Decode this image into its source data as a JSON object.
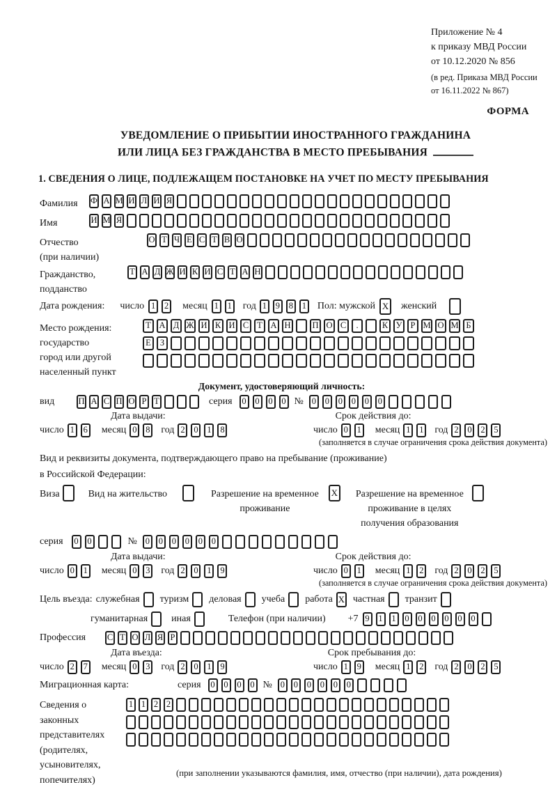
{
  "ink": "#1b1b1b",
  "header": {
    "appendix_lines": [
      "Приложение № 4",
      "к приказу МВД России",
      "от 10.12.2020 № 856"
    ],
    "edition_lines": [
      "(в ред. Приказа МВД России",
      "от 16.11.2022 № 867)"
    ],
    "form_label": "ФОРМА"
  },
  "title": {
    "line1": "УВЕДОМЛЕНИЕ О ПРИБЫТИИ ИНОСТРАННОГО ГРАЖДАНИНА",
    "line2": "ИЛИ ЛИЦА БЕЗ ГРАЖДАНСТВА В МЕСТО ПРЕБЫВАНИЯ"
  },
  "section1_heading": "1. СВЕДЕНИЯ О ЛИЦЕ, ПОДЛЕЖАЩЕМ ПОСТАНОВКЕ НА УЧЕТ ПО МЕСТУ ПРЕБЫВАНИЯ",
  "labels": {
    "surname": "Фамилия",
    "name": "Имя",
    "patronymic": "Отчество",
    "patronymic_note": "(при наличии)",
    "citizenship1": "Гражданство,",
    "citizenship2": "подданство",
    "birth_date": "Дата рождения:",
    "day": "число",
    "month": "месяц",
    "year": "год",
    "sex": "Пол:",
    "male": "мужской",
    "female": "женский",
    "birth_place1": "Место рождения:",
    "birth_place2": "государство",
    "birth_place3": "город или другой",
    "birth_place4": "населенный пункт",
    "identity_doc_heading": "Документ, удостоверяющий личность:",
    "doc_type": "вид",
    "series": "серия",
    "number": "№",
    "issue_date": "Дата выдачи:",
    "valid_until": "Срок действия до:",
    "valid_note": "(заполняется в случае ограничения срока действия документа)",
    "residence_doc_line1": "Вид и реквизиты документа, подтверждающего право на пребывание (проживание)",
    "residence_doc_line2": "в Российской Федерации:",
    "visa": "Виза",
    "residence_permit": "Вид на жительство",
    "temp_residence": [
      "Разрешение на временное",
      "проживание"
    ],
    "temp_residence_edu": [
      "Разрешение на временное",
      "проживание в целях",
      "получения образования"
    ],
    "visit_purpose": "Цель въезда:",
    "purpose_official": "служебная",
    "purpose_tourism": "туризм",
    "purpose_business": "деловая",
    "purpose_study": "учеба",
    "purpose_work": "работа",
    "purpose_private": "частная",
    "purpose_transit": "транзит",
    "purpose_humanitarian": "гуманитарная",
    "purpose_other": "иная",
    "phone": "Телефон (при наличии)",
    "phone_prefix": "+7",
    "profession": "Профессия",
    "entry_date": "Дата въезда:",
    "stay_until": "Срок пребывания до:",
    "migration_card": "Миграционная карта:",
    "representatives": [
      "Сведения о",
      "законных",
      "представителях",
      "(родителях,",
      "усыновителях,",
      "попечителях)"
    ],
    "representatives_note": "(при заполнении указываются фамилия, имя, отчество (при наличии), дата рождения)"
  },
  "boxes": {
    "surname": {
      "value": "ФАМИЛИЯ",
      "cells": 29
    },
    "name": {
      "value": "ИМЯ",
      "cells": 29
    },
    "patronymic": {
      "value": "ОТЧЕСТВО",
      "cells": 26
    },
    "citizenship": {
      "value": "ТАДЖИКИСТАН",
      "cells": 27
    },
    "birth_day": {
      "value": "12",
      "cells": 2
    },
    "birth_month": {
      "value": "11",
      "cells": 2
    },
    "birth_year": {
      "value": "1981",
      "cells": 4
    },
    "sex_male": {
      "value": "X",
      "cells": 1
    },
    "sex_female": {
      "value": "",
      "cells": 1
    },
    "birth_place_row1": {
      "value": "ТАДЖИКИСТАН ПОС. КУРМОМБ",
      "cells": 24
    },
    "birth_place_row2": {
      "value": "ЕЗ",
      "cells": 24
    },
    "birth_place_row3": {
      "value": "",
      "cells": 24
    },
    "id_doc_type": {
      "value": "ПАСПОРТ",
      "cells": 10
    },
    "id_series": {
      "value": "0000",
      "cells": 4
    },
    "id_number": {
      "value": "000000",
      "cells": 11
    },
    "id_issue_day": {
      "value": "16",
      "cells": 2
    },
    "id_issue_month": {
      "value": "08",
      "cells": 2
    },
    "id_issue_year": {
      "value": "2018",
      "cells": 4
    },
    "id_valid_day": {
      "value": "01",
      "cells": 2
    },
    "id_valid_month": {
      "value": "11",
      "cells": 2
    },
    "id_valid_year": {
      "value": "2025",
      "cells": 4
    },
    "visa_cb": {
      "value": "",
      "cells": 1
    },
    "residence_permit_cb": {
      "value": "",
      "cells": 1
    },
    "temp_residence_cb": {
      "value": "X",
      "cells": 1
    },
    "temp_residence_edu_cb": {
      "value": "",
      "cells": 1
    },
    "res_series": {
      "value": "00",
      "cells": 4
    },
    "res_number": {
      "value": "000000",
      "cells": 15
    },
    "res_issue_day": {
      "value": "01",
      "cells": 2
    },
    "res_issue_month": {
      "value": "03",
      "cells": 2
    },
    "res_issue_year": {
      "value": "2019",
      "cells": 4
    },
    "res_valid_day": {
      "value": "01",
      "cells": 2
    },
    "res_valid_month": {
      "value": "12",
      "cells": 2
    },
    "res_valid_year": {
      "value": "2025",
      "cells": 4
    },
    "purpose_official_cb": {
      "value": "",
      "cells": 1
    },
    "purpose_tourism_cb": {
      "value": "",
      "cells": 1
    },
    "purpose_business_cb": {
      "value": "",
      "cells": 1
    },
    "purpose_study_cb": {
      "value": "",
      "cells": 1
    },
    "purpose_work_cb": {
      "value": "X",
      "cells": 1
    },
    "purpose_private_cb": {
      "value": "",
      "cells": 1
    },
    "purpose_transit_cb": {
      "value": "",
      "cells": 1
    },
    "purpose_humanitarian_cb": {
      "value": "",
      "cells": 1
    },
    "purpose_other_cb": {
      "value": "",
      "cells": 1
    },
    "phone_number": {
      "value": "911000000",
      "cells": 10
    },
    "profession": {
      "value": "СТОЛЯР",
      "cells": 28
    },
    "entry_day": {
      "value": "27",
      "cells": 2
    },
    "entry_month": {
      "value": "03",
      "cells": 2
    },
    "entry_year": {
      "value": "2019",
      "cells": 4
    },
    "stay_day": {
      "value": "19",
      "cells": 2
    },
    "stay_month": {
      "value": "12",
      "cells": 2
    },
    "stay_year": {
      "value": "2025",
      "cells": 4
    },
    "mig_series": {
      "value": "0000",
      "cells": 4
    },
    "mig_number": {
      "value": "000000",
      "cells": 10
    },
    "rep_row1": {
      "value": "1122",
      "cells": 26
    },
    "rep_row2": {
      "value": "",
      "cells": 26
    },
    "rep_row3": {
      "value": "",
      "cells": 26
    }
  }
}
